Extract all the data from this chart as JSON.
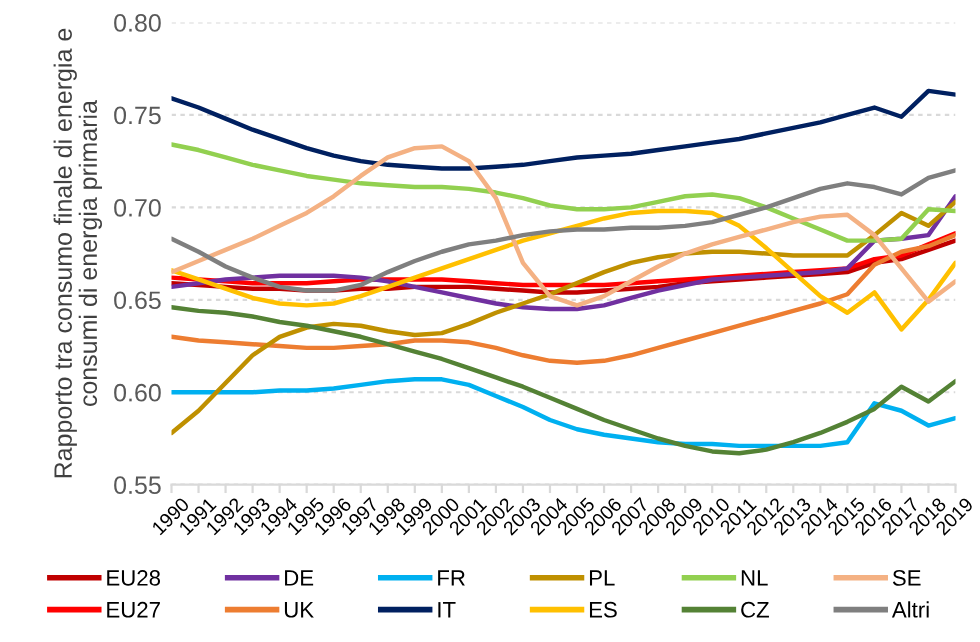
{
  "chart_data": {
    "type": "line",
    "ylabel": "Rapporto tra consumo finale di energia e\nconsumi di energia primaria",
    "categories": [
      "1990",
      "1991",
      "1992",
      "1993",
      "1994",
      "1995",
      "1996",
      "1997",
      "1998",
      "1999",
      "2000",
      "2001",
      "2002",
      "2003",
      "2004",
      "2005",
      "2006",
      "2007",
      "2008",
      "2009",
      "2010",
      "2011",
      "2012",
      "2013",
      "2014",
      "2015",
      "2016",
      "2017",
      "2018",
      "2019"
    ],
    "series": [
      {
        "name": "EU28",
        "color": "#c00000",
        "values": [
          0.659,
          0.658,
          0.657,
          0.656,
          0.656,
          0.655,
          0.655,
          0.656,
          0.656,
          0.657,
          0.657,
          0.657,
          0.656,
          0.655,
          0.654,
          0.654,
          0.655,
          0.656,
          0.657,
          0.659,
          0.66,
          0.661,
          0.662,
          0.663,
          0.664,
          0.665,
          0.67,
          0.672,
          0.677,
          0.682
        ]
      },
      {
        "name": "EU27",
        "color": "#ff0000",
        "values": [
          0.662,
          0.661,
          0.66,
          0.659,
          0.659,
          0.659,
          0.66,
          0.661,
          0.661,
          0.661,
          0.661,
          0.66,
          0.659,
          0.658,
          0.658,
          0.658,
          0.658,
          0.659,
          0.66,
          0.661,
          0.662,
          0.663,
          0.664,
          0.665,
          0.666,
          0.667,
          0.672,
          0.674,
          0.68,
          0.686
        ]
      },
      {
        "name": "DE",
        "color": "#7030a0",
        "values": [
          0.657,
          0.659,
          0.661,
          0.662,
          0.663,
          0.663,
          0.663,
          0.662,
          0.66,
          0.657,
          0.654,
          0.651,
          0.648,
          0.646,
          0.645,
          0.645,
          0.647,
          0.651,
          0.655,
          0.658,
          0.661,
          0.662,
          0.663,
          0.664,
          0.665,
          0.667,
          0.682,
          0.683,
          0.685,
          0.706
        ]
      },
      {
        "name": "UK",
        "color": "#ed7d31",
        "values": [
          0.63,
          0.628,
          0.627,
          0.626,
          0.625,
          0.624,
          0.624,
          0.625,
          0.626,
          0.628,
          0.628,
          0.627,
          0.624,
          0.62,
          0.617,
          0.616,
          0.617,
          0.62,
          0.624,
          0.628,
          0.632,
          0.636,
          0.64,
          0.644,
          0.648,
          0.653,
          0.669,
          0.676,
          0.679,
          0.685
        ]
      },
      {
        "name": "FR",
        "color": "#00b0f0",
        "values": [
          0.6,
          0.6,
          0.6,
          0.6,
          0.601,
          0.601,
          0.602,
          0.604,
          0.606,
          0.607,
          0.607,
          0.604,
          0.598,
          0.592,
          0.585,
          0.58,
          0.577,
          0.575,
          0.573,
          0.572,
          0.572,
          0.571,
          0.571,
          0.571,
          0.571,
          0.573,
          0.594,
          0.59,
          0.582,
          0.586
        ]
      },
      {
        "name": "IT",
        "color": "#002060",
        "values": [
          0.759,
          0.754,
          0.748,
          0.742,
          0.737,
          0.732,
          0.728,
          0.725,
          0.723,
          0.722,
          0.721,
          0.721,
          0.722,
          0.723,
          0.725,
          0.727,
          0.728,
          0.729,
          0.731,
          0.733,
          0.735,
          0.737,
          0.74,
          0.743,
          0.746,
          0.75,
          0.754,
          0.749,
          0.763,
          0.761
        ]
      },
      {
        "name": "PL",
        "color": "#bf9000",
        "values": [
          0.578,
          0.59,
          0.605,
          0.62,
          0.63,
          0.635,
          0.637,
          0.636,
          0.633,
          0.631,
          0.632,
          0.637,
          0.643,
          0.648,
          0.653,
          0.659,
          0.665,
          0.67,
          0.673,
          0.675,
          0.676,
          0.676,
          0.675,
          0.674,
          0.674,
          0.674,
          0.685,
          0.697,
          0.69,
          0.703
        ]
      },
      {
        "name": "ES",
        "color": "#ffc000",
        "values": [
          0.666,
          0.661,
          0.656,
          0.651,
          0.648,
          0.647,
          0.648,
          0.652,
          0.657,
          0.662,
          0.667,
          0.672,
          0.677,
          0.682,
          0.686,
          0.69,
          0.694,
          0.697,
          0.698,
          0.698,
          0.697,
          0.69,
          0.678,
          0.665,
          0.652,
          0.643,
          0.654,
          0.634,
          0.65,
          0.67
        ]
      },
      {
        "name": "NL",
        "color": "#92d050",
        "values": [
          0.734,
          0.731,
          0.727,
          0.723,
          0.72,
          0.717,
          0.715,
          0.713,
          0.712,
          0.711,
          0.711,
          0.71,
          0.708,
          0.705,
          0.701,
          0.699,
          0.699,
          0.7,
          0.703,
          0.706,
          0.707,
          0.705,
          0.7,
          0.694,
          0.688,
          0.682,
          0.682,
          0.683,
          0.699,
          0.698
        ]
      },
      {
        "name": "CZ",
        "color": "#548235",
        "values": [
          0.646,
          0.644,
          0.643,
          0.641,
          0.638,
          0.636,
          0.633,
          0.63,
          0.626,
          0.622,
          0.618,
          0.613,
          0.608,
          0.603,
          0.597,
          0.591,
          0.585,
          0.58,
          0.575,
          0.571,
          0.568,
          0.567,
          0.569,
          0.573,
          0.578,
          0.584,
          0.591,
          0.603,
          0.595,
          0.606
        ]
      },
      {
        "name": "SE",
        "color": "#f4b183",
        "values": [
          0.665,
          0.671,
          0.677,
          0.683,
          0.69,
          0.697,
          0.706,
          0.717,
          0.727,
          0.732,
          0.733,
          0.725,
          0.705,
          0.67,
          0.652,
          0.647,
          0.652,
          0.66,
          0.668,
          0.675,
          0.68,
          0.684,
          0.688,
          0.692,
          0.695,
          0.696,
          0.685,
          0.667,
          0.649,
          0.66
        ]
      },
      {
        "name": "Altri",
        "color": "#7f7f7f",
        "values": [
          0.683,
          0.676,
          0.668,
          0.662,
          0.657,
          0.655,
          0.655,
          0.658,
          0.665,
          0.671,
          0.676,
          0.68,
          0.682,
          0.685,
          0.687,
          0.688,
          0.688,
          0.689,
          0.689,
          0.69,
          0.692,
          0.696,
          0.7,
          0.705,
          0.71,
          0.713,
          0.711,
          0.707,
          0.716,
          0.72
        ]
      }
    ],
    "ylim": [
      0.55,
      0.8
    ],
    "yticks": [
      {
        "value": 0.55,
        "label": "0.55"
      },
      {
        "value": 0.6,
        "label": "0.60"
      },
      {
        "value": 0.65,
        "label": "0.65"
      },
      {
        "value": 0.7,
        "label": "0.70"
      },
      {
        "value": 0.75,
        "label": "0.75"
      },
      {
        "value": 0.8,
        "label": "0.80"
      }
    ],
    "grid": "y",
    "legend": "bottom",
    "marker": "none",
    "line_style": "solid"
  }
}
